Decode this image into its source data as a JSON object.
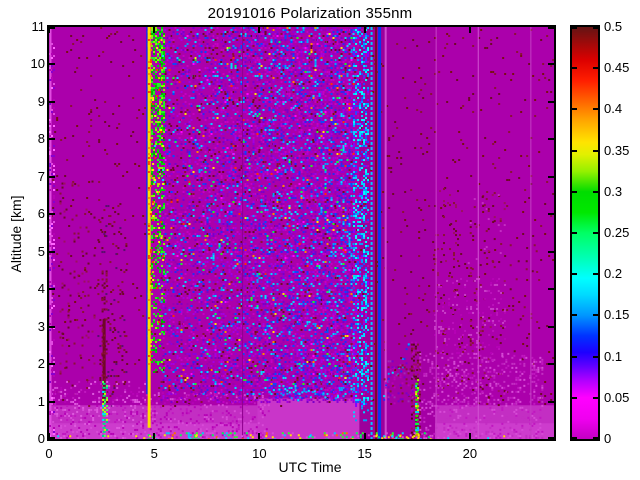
{
  "chart_data": {
    "type": "heatmap",
    "title": "20191016 Polarization 355nm",
    "xlabel": "UTC Time",
    "ylabel": "Altitude [km]",
    "xlim": [
      0,
      24
    ],
    "ylim": [
      0,
      11
    ],
    "xticks": [
      0,
      5,
      10,
      15,
      20
    ],
    "yticks": [
      0,
      1,
      2,
      3,
      4,
      5,
      6,
      7,
      8,
      9,
      10,
      11
    ],
    "grid": false,
    "legend": "none",
    "summary": "Time-height lidar depolarization ratio on 2019-10-16 at 355nm. Background mostly near 0 (magenta) with sparse dark-red noise. Bright multicolored calibration stripe ~04:40-05:20 UTC reaching 0.3-0.5. Dense blue/purple noise speckle from ~05 to ~15 UTC above 1 km, ending in a dense cyan column ~14:30-15:10. Instrument gap lines at ~15:20-16:00 (cyan, maroon and blue vertical lines). Low cloud/aerosol layer top at ~1.0-1.3 km from ~10:30-14:30 with blue edge; rising cloud bumps to ~2.5 km near 16-17:30 with dark-red streaks ~17:20-17:35. Sparse dark-red noise columns 18-22 UTC.",
    "colorbar": {
      "min": 0,
      "max": 0.5,
      "ticks": [
        "0",
        "0.05",
        "0.1",
        "0.15",
        "0.2",
        "0.25",
        "0.3",
        "0.35",
        "0.4",
        "0.45",
        "0.5"
      ],
      "stops": [
        [
          0.0,
          "#c200c2"
        ],
        [
          0.05,
          "#f000f0"
        ],
        [
          0.1,
          "#ff00ff"
        ],
        [
          0.14,
          "#b400ff"
        ],
        [
          0.18,
          "#5a00ff"
        ],
        [
          0.21,
          "#1e00ff"
        ],
        [
          0.25,
          "#0032ff"
        ],
        [
          0.3,
          "#0096ff"
        ],
        [
          0.35,
          "#00daff"
        ],
        [
          0.39,
          "#00ffff"
        ],
        [
          0.44,
          "#00ffb4"
        ],
        [
          0.5,
          "#00ff64"
        ],
        [
          0.55,
          "#00e800"
        ],
        [
          0.6,
          "#00dc00"
        ],
        [
          0.65,
          "#96f000"
        ],
        [
          0.69,
          "#e1f000"
        ],
        [
          0.72,
          "#ffe400"
        ],
        [
          0.77,
          "#ffaa00"
        ],
        [
          0.82,
          "#ff6400"
        ],
        [
          0.87,
          "#ff1e00"
        ],
        [
          0.92,
          "#dc0000"
        ],
        [
          0.96,
          "#a00a0a"
        ],
        [
          1.0,
          "#641414"
        ]
      ]
    },
    "render_layers": [
      {
        "t": "fill",
        "x": [
          0,
          24
        ],
        "y": [
          0,
          11
        ],
        "c": "#ab00ab"
      },
      {
        "t": "fill",
        "x": [
          0,
          24
        ],
        "y": [
          0,
          0.9
        ],
        "c": "#c32ec3"
      },
      {
        "t": "fill",
        "x": [
          0,
          24
        ],
        "y": [
          0,
          0.42
        ],
        "c": "#cd3ccd"
      },
      {
        "t": "fill",
        "x": [
          9.9,
          17.6
        ],
        "y": [
          0,
          1.08
        ],
        "c": "#c935c9"
      },
      {
        "t": "fill",
        "x": [
          14.75,
          16.03
        ],
        "y": [
          0,
          11
        ],
        "c": "#9c009c"
      },
      {
        "t": "fill",
        "x": [
          16.03,
          18.35
        ],
        "y": [
          0,
          11
        ],
        "c": "#a400a4"
      },
      {
        "t": "noise",
        "x": [
          0.15,
          24
        ],
        "y": [
          0.9,
          11
        ],
        "d": 0.02,
        "cs": [
          "#6f0927",
          "#8c1136",
          "#7a0d14"
        ]
      },
      {
        "t": "noise",
        "x": [
          0.5,
          2.2
        ],
        "y": [
          1.4,
          6.9
        ],
        "d": 0.05,
        "cs": [
          "#6f0927",
          "#8c1136",
          "#9d1060"
        ]
      },
      {
        "t": "noise",
        "x": [
          2.3,
          3.7
        ],
        "y": [
          0.9,
          6.3
        ],
        "d": 0.06,
        "cs": [
          "#6f0927",
          "#8c1136",
          "#5a0f6e"
        ]
      },
      {
        "t": "noise",
        "x": [
          0.15,
          4.6
        ],
        "y": [
          0,
          1.55
        ],
        "d": 0.22,
        "cs": [
          "#d74bd7",
          "#c017c0",
          "#df5adf",
          "#b602b6"
        ]
      },
      {
        "t": "noise",
        "x": [
          4.6,
          10.4
        ],
        "y": [
          0,
          1.25
        ],
        "d": 0.2,
        "cs": [
          "#d74bd7",
          "#c017c0",
          "#b602b6"
        ]
      },
      {
        "t": "noise",
        "x": [
          5.3,
          14.45
        ],
        "y": [
          1.0,
          11
        ],
        "d": [
          0.22,
          0.5
        ],
        "ax": "x",
        "cs": [
          "#8f00d8",
          "#7a00c8",
          "#a400e0",
          "#c400c4",
          "#9b00b0"
        ]
      },
      {
        "t": "noise",
        "x": [
          5.3,
          14.45
        ],
        "y": [
          1.2,
          11
        ],
        "d": [
          0.05,
          0.18
        ],
        "ax": "x",
        "cs": [
          "#2a2af0",
          "#0050ff",
          "#00a0ff",
          "#00dcff"
        ]
      },
      {
        "t": "noise",
        "x": [
          5.3,
          14.45
        ],
        "y": [
          1.4,
          11
        ],
        "d": 0.02,
        "cs": [
          "#00ff55",
          "#ffe800",
          "#ff3000",
          "#19ff19",
          "#ff8800",
          "#ff00ff"
        ]
      },
      {
        "t": "noise",
        "x": [
          5.3,
          14.45
        ],
        "y": [
          1.0,
          11
        ],
        "d": 0.025,
        "cs": [
          "#6f0927",
          "#8c1136"
        ]
      },
      {
        "t": "vline",
        "x": 4.66,
        "w": 2,
        "y": [
          1.2,
          11
        ],
        "c": "#2525e8"
      },
      {
        "t": "vline",
        "x": 4.76,
        "w": 3,
        "y": [
          0.3,
          11
        ],
        "c": "#ffe000"
      },
      {
        "t": "noise",
        "x": [
          4.7,
          4.85
        ],
        "y": [
          2,
          11
        ],
        "d": 0.25,
        "cs": [
          "#ff8c00",
          "#ff4200",
          "#ffe000"
        ]
      },
      {
        "t": "noise",
        "x": [
          4.85,
          5.45
        ],
        "y": [
          1.8,
          11
        ],
        "d": [
          0.15,
          0.6
        ],
        "ax": "y",
        "cs": [
          "#00dc00",
          "#22f522",
          "#00b400",
          "#8cf500"
        ]
      },
      {
        "t": "noise",
        "x": [
          4.9,
          5.4
        ],
        "y": [
          3,
          11
        ],
        "d": 0.05,
        "cs": [
          "#ff3000",
          "#ffaa00",
          "#ffee00",
          "#00e0ff"
        ]
      },
      {
        "t": "noise",
        "x": [
          14.45,
          15.2
        ],
        "y": [
          0.9,
          11
        ],
        "d": 0.5,
        "cs": [
          "#00a0ff",
          "#00d8ff",
          "#2a46ff",
          "#8800ff",
          "#b602b6",
          "#00ffff"
        ]
      },
      {
        "t": "noise",
        "x": [
          14.45,
          15.2
        ],
        "y": [
          0.45,
          0.9
        ],
        "d": 0.2,
        "cs": [
          "#00a0ff",
          "#00d8ff"
        ]
      },
      {
        "t": "vline",
        "x": 15.33,
        "w": 2,
        "y": [
          0,
          11
        ],
        "c": "#00ccff",
        "dash": [
          3,
          2
        ]
      },
      {
        "t": "vline",
        "x": 15.54,
        "w": 2,
        "y": [
          0,
          11
        ],
        "c": "#770a2c"
      },
      {
        "t": "vline",
        "x": 15.71,
        "w": 3,
        "y": [
          0,
          11
        ],
        "c": "#0837ee"
      },
      {
        "t": "vline",
        "x": 16.0,
        "w": 2,
        "y": [
          0,
          11
        ],
        "c": "#cf49cf"
      },
      {
        "t": "vline",
        "x": 2.62,
        "w": 3,
        "y": [
          0.95,
          3.2
        ],
        "c": "#6f0927"
      },
      {
        "t": "noise",
        "x": [
          2.5,
          2.75
        ],
        "y": [
          1.6,
          4.5
        ],
        "d": 0.3,
        "cs": [
          "#6f0927",
          "#8c1136"
        ]
      },
      {
        "t": "vline",
        "x": 2.62,
        "w": 3,
        "y": [
          0.1,
          1.5
        ],
        "c": "#00e87c",
        "dash": [
          2,
          2
        ]
      },
      {
        "t": "noise",
        "x": [
          2.52,
          2.74
        ],
        "y": [
          0.1,
          1.55
        ],
        "d": 0.35,
        "cs": [
          "#00e0ff",
          "#57ff57",
          "#c8f500",
          "#00c8a0"
        ]
      },
      {
        "t": "noise",
        "x": [
          17.2,
          17.6
        ],
        "y": [
          0,
          2.6
        ],
        "d": 0.45,
        "cs": [
          "#6f0927",
          "#8c1136",
          "#550718",
          "#b602b6",
          "#9d1060"
        ]
      },
      {
        "t": "vline",
        "x": 17.48,
        "w": 3,
        "y": [
          0.05,
          1.5
        ],
        "c": "#2ee800",
        "dash": [
          2,
          2
        ]
      },
      {
        "t": "noise",
        "x": [
          17.4,
          17.58
        ],
        "y": [
          0,
          1.6
        ],
        "d": 0.3,
        "cs": [
          "#00ff44",
          "#a0ff00",
          "#00dcff",
          "#ffe800"
        ]
      },
      {
        "t": "edge",
        "pts": [
          [
            10.45,
            1.32
          ],
          [
            10.9,
            1.22
          ],
          [
            11.3,
            1.3
          ],
          [
            11.8,
            1.18
          ],
          [
            12.3,
            1.26
          ],
          [
            12.9,
            1.3
          ],
          [
            13.4,
            1.18
          ],
          [
            13.95,
            1.28
          ],
          [
            14.4,
            1.22
          ]
        ],
        "tk": 0.14,
        "d": 0.55,
        "cs": [
          "#2a2af0",
          "#00a0ff",
          "#00e0ff",
          "#8800ff"
        ]
      },
      {
        "t": "edge",
        "pts": [
          [
            15.88,
            1.2
          ],
          [
            16.1,
            1.65
          ],
          [
            16.35,
            2.0
          ],
          [
            16.6,
            1.82
          ],
          [
            16.85,
            2.15
          ],
          [
            17.05,
            2.5
          ],
          [
            17.25,
            2.3
          ]
        ],
        "tk": 0.13,
        "d": 0.5,
        "cs": [
          "#2a2af0",
          "#00a0ff",
          "#00e0ff",
          "#b602b6"
        ]
      },
      {
        "t": "noise",
        "x": [
          15.9,
          17.25
        ],
        "y": [
          0.9,
          2.1
        ],
        "d": 0.18,
        "cs": [
          "#a12bb4",
          "#b602b6",
          "#7a00c8",
          "#8c1136"
        ]
      },
      {
        "t": "noise",
        "x": [
          18.25,
          19.6
        ],
        "y": [
          1.1,
          6.7
        ],
        "d": 0.05,
        "cs": [
          "#6f0927",
          "#8c1136",
          "#9d1060"
        ]
      },
      {
        "t": "noise",
        "x": [
          19.9,
          21.7
        ],
        "y": [
          0.9,
          6.7
        ],
        "d": 0.06,
        "cs": [
          "#6f0927",
          "#8c1136",
          "#c32ec3",
          "#9d1060"
        ]
      },
      {
        "t": "noise",
        "x": [
          21.8,
          23.2
        ],
        "y": [
          2,
          5.2
        ],
        "d": 0.022,
        "cs": [
          "#6f0927",
          "#8c1136"
        ]
      },
      {
        "t": "noise",
        "x": [
          17.6,
          23.4
        ],
        "y": [
          0,
          2.3
        ],
        "d": 0.2,
        "cs": [
          "#d74bd7",
          "#c32ec3",
          "#c017c0"
        ]
      },
      {
        "t": "noise",
        "x": [
          18.3,
          21.7
        ],
        "y": [
          2.3,
          4.3
        ],
        "d": 0.12,
        "cs": [
          "#c93fc9",
          "#b602b6",
          "#bc10bc"
        ]
      },
      {
        "t": "vline",
        "x": 9.2,
        "w": 1,
        "y": [
          0,
          11
        ],
        "c": "#8f008f"
      },
      {
        "t": "vline",
        "x": 18.4,
        "w": 1,
        "y": [
          0,
          11
        ],
        "c": "#c53fc5"
      },
      {
        "t": "vline",
        "x": 20.4,
        "w": 1,
        "y": [
          0,
          11
        ],
        "c": "#d254d2"
      },
      {
        "t": "vline",
        "x": 22.9,
        "w": 1,
        "y": [
          0,
          11
        ],
        "c": "#c53fc5"
      },
      {
        "t": "vline",
        "x": 0.07,
        "w": 2,
        "y": [
          0,
          11
        ],
        "c": "#e14ce1"
      },
      {
        "t": "noise",
        "x": [
          0,
          0.25
        ],
        "y": [
          0,
          11
        ],
        "d": 0.25,
        "cs": [
          "#e14ce1",
          "#ff66ff",
          "#8800d0",
          "#b602b6"
        ]
      },
      {
        "t": "noise",
        "x": [
          4.6,
          18.2
        ],
        "y": [
          0,
          0.18
        ],
        "d": 0.22,
        "cs": [
          "#00ff55",
          "#ffe400",
          "#00ccff",
          "#ff6a00",
          "#2aff2a",
          "#d74bd7"
        ]
      },
      {
        "t": "noise",
        "x": [
          0.2,
          24
        ],
        "y": [
          0,
          0.1
        ],
        "d": 0.06,
        "cs": [
          "#dc55dc",
          "#00e0ff",
          "#ffe400"
        ]
      }
    ]
  }
}
